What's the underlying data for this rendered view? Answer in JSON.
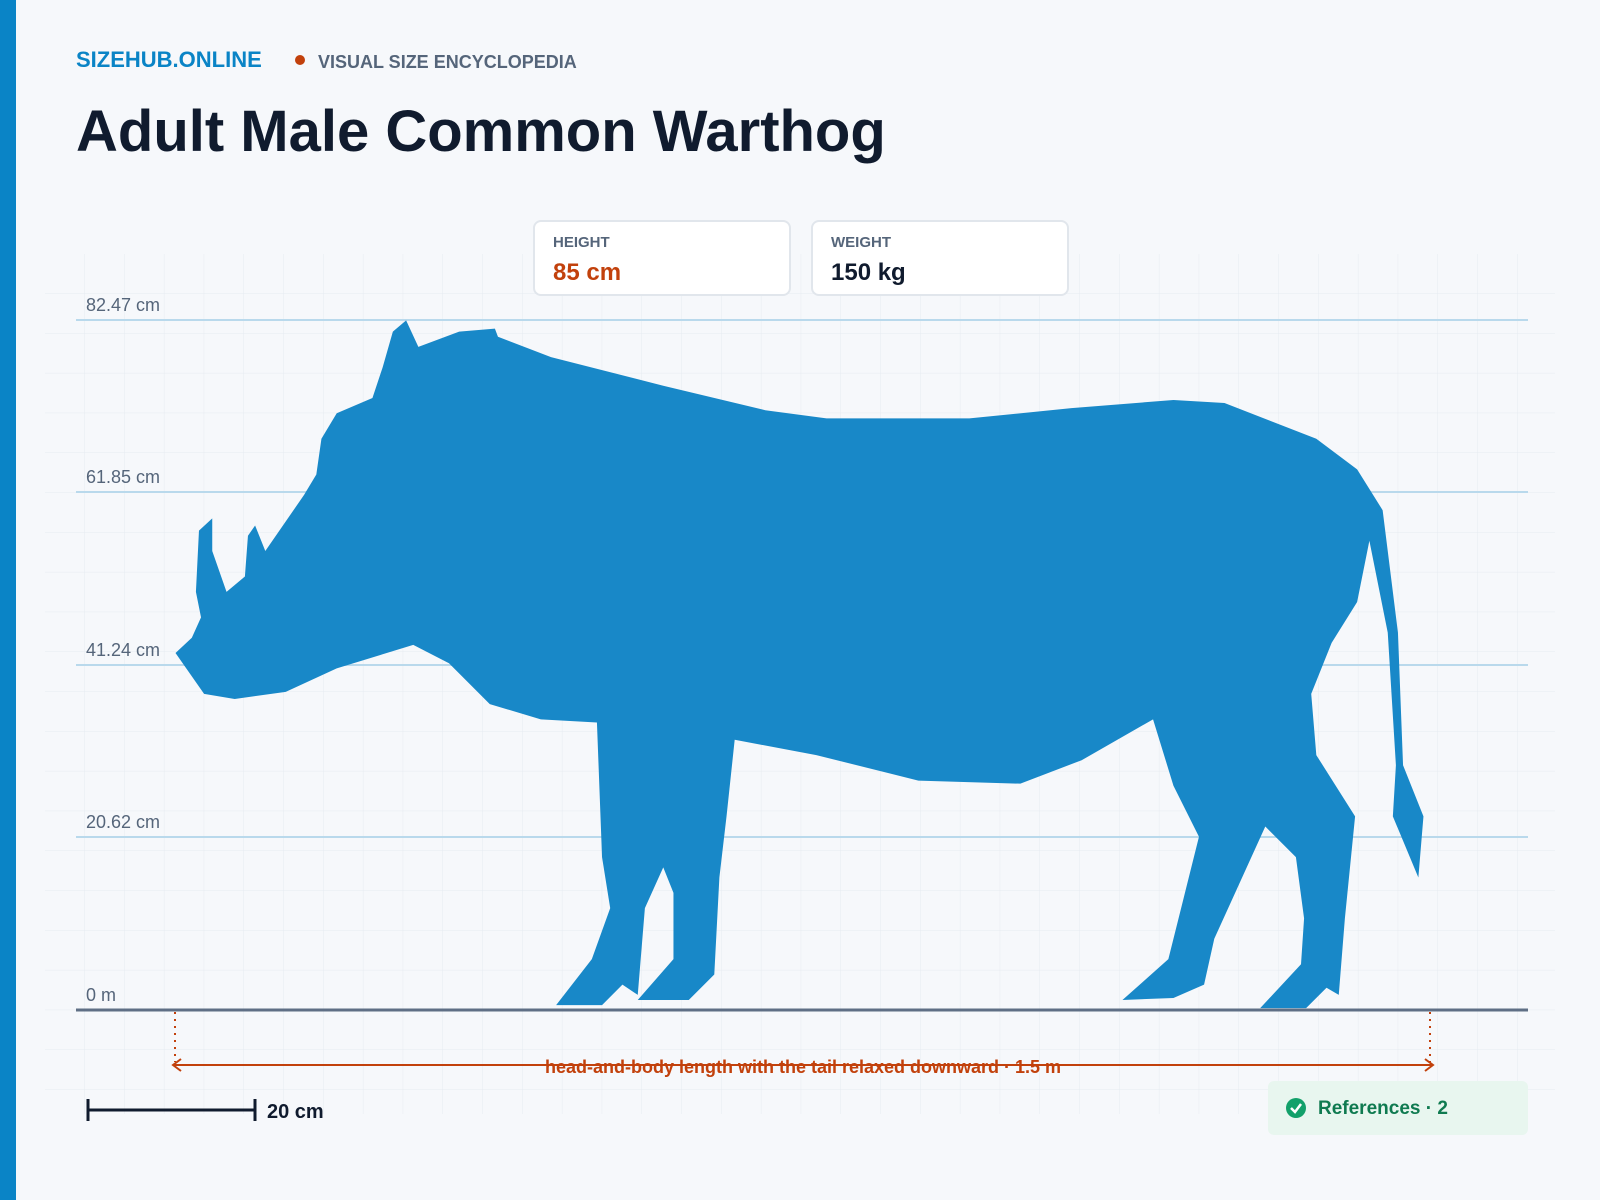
{
  "header": {
    "brand": "SIZEHUB.ONLINE",
    "tagline": "VISUAL SIZE ENCYCLOPEDIA",
    "title": "Adult Male Common Warthog"
  },
  "stats": [
    {
      "label": "HEIGHT",
      "value": "85 cm"
    },
    {
      "label": "WEIGHT",
      "value": "150 kg"
    }
  ],
  "ruler": {
    "labels": [
      "82.47 cm",
      "61.85 cm",
      "41.24 cm",
      "20.62 cm",
      "0 m"
    ]
  },
  "measurement": "head-and-body length with the tail relaxed downward · 1.5 m",
  "scale_bar": "20 cm",
  "references": "References · 2"
}
